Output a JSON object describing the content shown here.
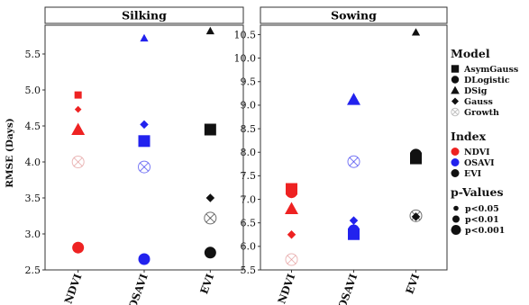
{
  "colors": {
    "NDVI": "#ee2222",
    "OSAVI": "#2222ee",
    "EVI": "#111111",
    "growth_ring": "#dd8888"
  },
  "chart_data": {
    "type": "scatter",
    "ylabel": "RMSE (Days)",
    "categories": [
      "NDVI",
      "OSAVI",
      "EVI"
    ],
    "panels": [
      {
        "title": "Silking",
        "ylim": [
          2.5,
          5.9
        ],
        "yticks": [
          "2.5",
          "3.0",
          "3.5",
          "4.0",
          "4.5",
          "5.0",
          "5.5"
        ],
        "points": [
          {
            "index": "NDVI",
            "model": "AsymGauss",
            "y": 4.93,
            "size": "small"
          },
          {
            "index": "NDVI",
            "model": "Gauss",
            "y": 4.73,
            "size": "small"
          },
          {
            "index": "NDVI",
            "model": "DSig",
            "y": 4.45,
            "size": "large"
          },
          {
            "index": "NDVI",
            "model": "Growth",
            "y": 4.0,
            "size": "large"
          },
          {
            "index": "NDVI",
            "model": "DLogistic",
            "y": 2.81,
            "size": "large"
          },
          {
            "index": "OSAVI",
            "model": "DSig",
            "y": 5.72,
            "size": "small"
          },
          {
            "index": "OSAVI",
            "model": "Gauss",
            "y": 4.52,
            "size": "medium"
          },
          {
            "index": "OSAVI",
            "model": "AsymGauss",
            "y": 4.29,
            "size": "large"
          },
          {
            "index": "OSAVI",
            "model": "Growth",
            "y": 3.93,
            "size": "large"
          },
          {
            "index": "OSAVI",
            "model": "DLogistic",
            "y": 2.65,
            "size": "large"
          },
          {
            "index": "EVI",
            "model": "DSig",
            "y": 5.82,
            "size": "small"
          },
          {
            "index": "EVI",
            "model": "AsymGauss",
            "y": 4.45,
            "size": "large"
          },
          {
            "index": "EVI",
            "model": "Gauss",
            "y": 3.5,
            "size": "medium"
          },
          {
            "index": "EVI",
            "model": "Growth",
            "y": 3.22,
            "size": "large"
          },
          {
            "index": "EVI",
            "model": "DLogistic",
            "y": 2.74,
            "size": "large"
          }
        ]
      },
      {
        "title": "Sowing",
        "ylim": [
          5.5,
          10.7
        ],
        "yticks": [
          "5.5",
          "6.0",
          "6.5",
          "7.0",
          "7.5",
          "8.0",
          "8.5",
          "9.0",
          "9.5",
          "10.0",
          "10.5"
        ],
        "points": [
          {
            "index": "NDVI",
            "model": "AsymGauss",
            "y": 7.22,
            "size": "large"
          },
          {
            "index": "NDVI",
            "model": "DLogistic",
            "y": 7.15,
            "size": "large"
          },
          {
            "index": "NDVI",
            "model": "DSig",
            "y": 6.8,
            "size": "large"
          },
          {
            "index": "NDVI",
            "model": "Gauss",
            "y": 6.25,
            "size": "medium"
          },
          {
            "index": "NDVI",
            "model": "Growth",
            "y": 5.72,
            "size": "large"
          },
          {
            "index": "OSAVI",
            "model": "DSig",
            "y": 9.12,
            "size": "large"
          },
          {
            "index": "OSAVI",
            "model": "Growth",
            "y": 7.8,
            "size": "large"
          },
          {
            "index": "OSAVI",
            "model": "Gauss",
            "y": 6.55,
            "size": "medium"
          },
          {
            "index": "OSAVI",
            "model": "DLogistic",
            "y": 6.34,
            "size": "large"
          },
          {
            "index": "OSAVI",
            "model": "AsymGauss",
            "y": 6.26,
            "size": "large"
          },
          {
            "index": "EVI",
            "model": "DSig",
            "y": 10.55,
            "size": "small"
          },
          {
            "index": "EVI",
            "model": "DLogistic",
            "y": 7.95,
            "size": "large"
          },
          {
            "index": "EVI",
            "model": "AsymGauss",
            "y": 7.87,
            "size": "large"
          },
          {
            "index": "EVI",
            "model": "Growth",
            "y": 6.65,
            "size": "large"
          },
          {
            "index": "EVI",
            "model": "Gauss",
            "y": 6.63,
            "size": "medium"
          }
        ]
      }
    ],
    "legend": {
      "placement": "right",
      "model": {
        "title": "Model",
        "items": [
          "AsymGauss",
          "DLogistic",
          "DSig",
          "Gauss",
          "Growth"
        ]
      },
      "index": {
        "title": "Index",
        "items": [
          "NDVI",
          "OSAVI",
          "EVI"
        ]
      },
      "pvalues": {
        "title": "p-Values",
        "items": [
          "p<0.05",
          "p<0.01",
          "p<0.001"
        ]
      }
    }
  }
}
